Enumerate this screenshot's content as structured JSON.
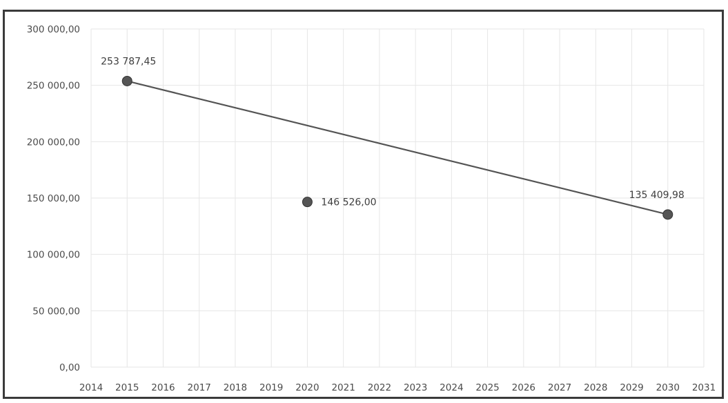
{
  "chart_data": {
    "type": "scatter",
    "title": "",
    "xlabel": "",
    "ylabel": "",
    "xlim": [
      2014,
      2031
    ],
    "ylim": [
      0,
      300000
    ],
    "x_ticks": [
      2014,
      2015,
      2016,
      2017,
      2018,
      2019,
      2020,
      2021,
      2022,
      2023,
      2024,
      2025,
      2026,
      2027,
      2028,
      2029,
      2030,
      2031
    ],
    "y_ticks": [
      0,
      50000,
      100000,
      150000,
      200000,
      250000,
      300000
    ],
    "y_tick_labels": [
      "0,00",
      "50 000,00",
      "100 000,00",
      "150 000,00",
      "200 000,00",
      "250 000,00",
      "300 000,00"
    ],
    "grid": true,
    "legend": "none",
    "points": [
      {
        "x": 2015,
        "y": 253787.45,
        "label": "253 787,45"
      },
      {
        "x": 2020,
        "y": 146526.0,
        "label": "146 526,00"
      },
      {
        "x": 2030,
        "y": 135409.98,
        "label": "135 409,98"
      }
    ],
    "lines": [
      {
        "from": {
          "x": 2015,
          "y": 253787.45
        },
        "to": {
          "x": 2030,
          "y": 135409.98
        }
      }
    ],
    "colors": {
      "line": "#545454",
      "marker": "#555555",
      "grid": "#e6e6e6"
    }
  }
}
